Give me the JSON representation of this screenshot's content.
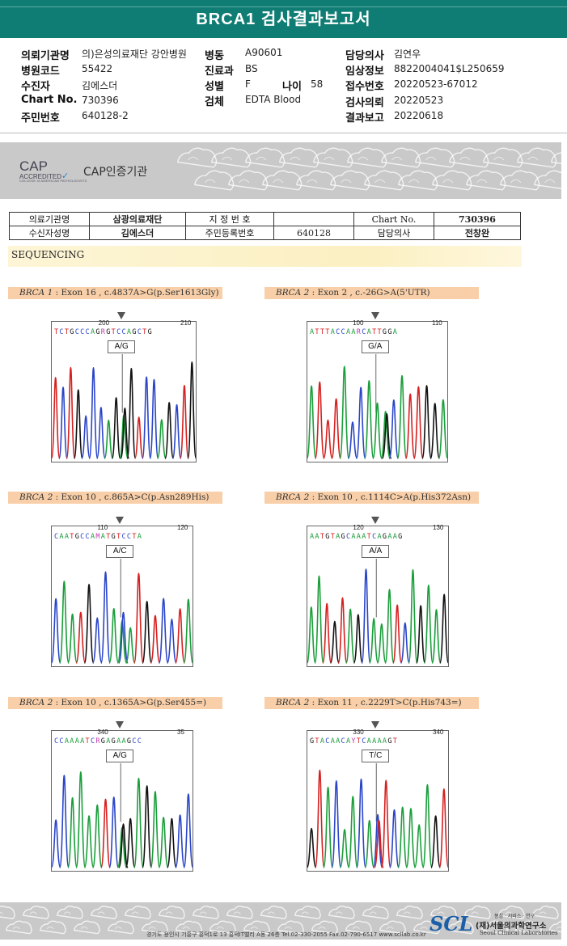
{
  "report": {
    "title": "BRCA1 검사결과보고서"
  },
  "header": {
    "fields": [
      {
        "label": "의뢰기관명",
        "value": "의)은성의료재단 강안병원"
      },
      {
        "label": "병원코드",
        "value": "55422"
      },
      {
        "label": "수진자",
        "value": "김에스더"
      },
      {
        "label": "Chart No.",
        "value": "730396"
      },
      {
        "label": "주민번호",
        "value": "640128-2"
      },
      {
        "label": "병동",
        "value": "A90601"
      },
      {
        "label": "진료과",
        "value": "BS"
      },
      {
        "label": "성별",
        "value": "F"
      },
      {
        "label": "나이",
        "value": "58"
      },
      {
        "label": "검체",
        "value": "EDTA Blood"
      },
      {
        "label": "담당의사",
        "value": "김연우"
      },
      {
        "label": "임상정보",
        "value": "8822004041$L250659"
      },
      {
        "label": "접수번호",
        "value": "20220523-67012"
      },
      {
        "label": "검사의뢰",
        "value": "20220523"
      },
      {
        "label": "결과보고",
        "value": "20220618"
      }
    ]
  },
  "cap": {
    "logo_text": "CAP",
    "accredited": "ACCREDITED",
    "college": "COLLEGE of AMERICAN PATHOLOGISTS",
    "cert_label": "CAP인증기관"
  },
  "patient_table": {
    "row1": [
      "의료기관명",
      "삼광의료재단",
      "지 정 번 호",
      "",
      "Chart No.",
      "730396"
    ],
    "row2": [
      "수신자성명",
      "김에스더",
      "주민등록번호",
      "640128",
      "담당의사",
      "전창완"
    ]
  },
  "sequencing_label": "SEQUENCING",
  "variants": [
    {
      "gene": "BRCA 1",
      "desc": " : Exon 16 , c.4837A>G(p.Ser1613Gly)",
      "genotype": "A/G",
      "seq": "TCTGCCCAGRGTCCAGCTG",
      "pos_a": "200",
      "pos_b": "210"
    },
    {
      "gene": "BRCA 2",
      "desc": " : Exon 2 , c.-26G>A(5'UTR)",
      "genotype": "G/A",
      "seq": "ATTTACCAARCATTGGA",
      "pos_a": "100",
      "pos_b": "110"
    },
    {
      "gene": "BRCA 2",
      "desc": " : Exon 10 , c.865A>C(p.Asn289His)",
      "genotype": "A/C",
      "seq": "CAATGCCAMATGTCCTA",
      "pos_a": "110",
      "pos_b": "120"
    },
    {
      "gene": "BRCA 2",
      "desc": " : Exon 10 , c.1114C>A(p.His372Asn)",
      "genotype": "A/A",
      "seq": "AATGTAGCAAATCAGAAG",
      "pos_a": "120",
      "pos_b": "130"
    },
    {
      "gene": "BRCA 2",
      "desc": " : Exon 10 , c.1365A>G(p.Ser455=)",
      "genotype": "A/G",
      "seq": "CCAAAATCRGAGAAGCC",
      "pos_a": "340",
      "pos_b": "35"
    },
    {
      "gene": "BRCA 2",
      "desc": " : Exon 11 , c.2229T>C(p.His743=)",
      "genotype": "T/C",
      "seq": "GTACAACAYTCAAAAGT",
      "pos_a": "330",
      "pos_b": "340"
    }
  ],
  "footer": {
    "address": "경기도 용인시 기흥구 흥덕1로 13 흥덕IT밸리 A동 26층   Tel.02-330-2055   Fax.02-790-6517   www.scllab.co.kr",
    "scl_tagline": "봉침 · 서비스 · 연구",
    "scl_logo": "SCL",
    "scl_name": "(재)서울의과학연구소",
    "scl_en": "Seoul Clinical Laboratories"
  },
  "colors": {
    "title_bar": "#0f7d73",
    "label_bg": "#f8cfa8",
    "base_A": "#1a9e3a",
    "base_C": "#2a45c8",
    "base_G": "#111111",
    "base_T": "#d62020"
  }
}
